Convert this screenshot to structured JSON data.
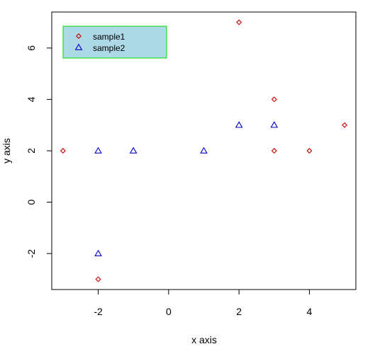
{
  "chart_data": {
    "type": "scatter",
    "xlabel": "x axis",
    "ylabel": "y axis",
    "xlim": [
      -3.32,
      5.32
    ],
    "ylim": [
      -3.4,
      7.4
    ],
    "xticks": [
      -2,
      0,
      2,
      4
    ],
    "yticks": [
      -2,
      0,
      2,
      4,
      6
    ],
    "series": [
      {
        "name": "sample1",
        "marker": "diamond",
        "color": "#cc0000",
        "x": [
          -3,
          -2,
          2,
          3,
          3,
          4,
          5
        ],
        "y": [
          2,
          -3,
          7,
          4,
          2,
          2,
          3
        ]
      },
      {
        "name": "sample2",
        "marker": "triangle",
        "color": "#0000cc",
        "x": [
          -2,
          -2,
          -1,
          1,
          2,
          3
        ],
        "y": [
          2,
          -2,
          2,
          2,
          3,
          3
        ]
      }
    ],
    "legend": {
      "position": "top-left",
      "background": "#add8e6",
      "border": "#00dd00"
    }
  }
}
